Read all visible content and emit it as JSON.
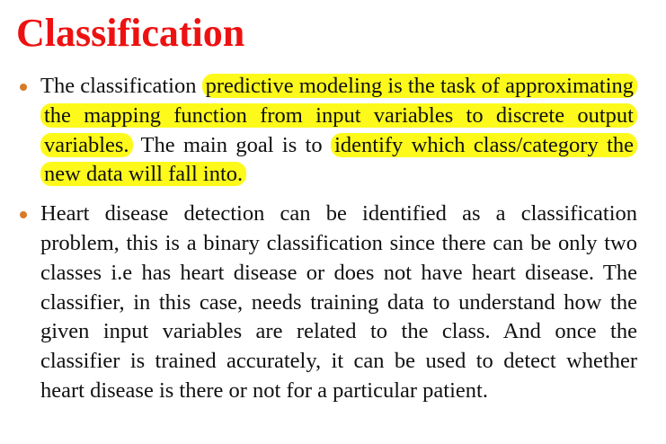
{
  "slide": {
    "title": "Classification",
    "title_color": "#ee1111",
    "highlight_color": "#fdfa1b",
    "bullet_color": "#d97a2b"
  },
  "bullets": [
    {
      "segments": [
        {
          "text": "The classification ",
          "highlight": false
        },
        {
          "text": "predictive modeling is the task of approximating the mapping function from input variables to discrete output variables.",
          "highlight": true
        },
        {
          "text": " The main goal is to ",
          "highlight": false
        },
        {
          "text": "identify which class/category the new data will fall into.",
          "highlight": true
        }
      ]
    },
    {
      "segments": [
        {
          "text": "Heart disease detection can be identified as a classification problem, this is a binary classification since there can be only two classes i.e has heart disease or does not have heart disease. The classifier, in this case, needs training data to understand how the given input variables are related to the class. And once the classifier is trained accurately, it can be used to detect whether heart disease is there or not for a particular patient.",
          "highlight": false
        }
      ]
    }
  ]
}
